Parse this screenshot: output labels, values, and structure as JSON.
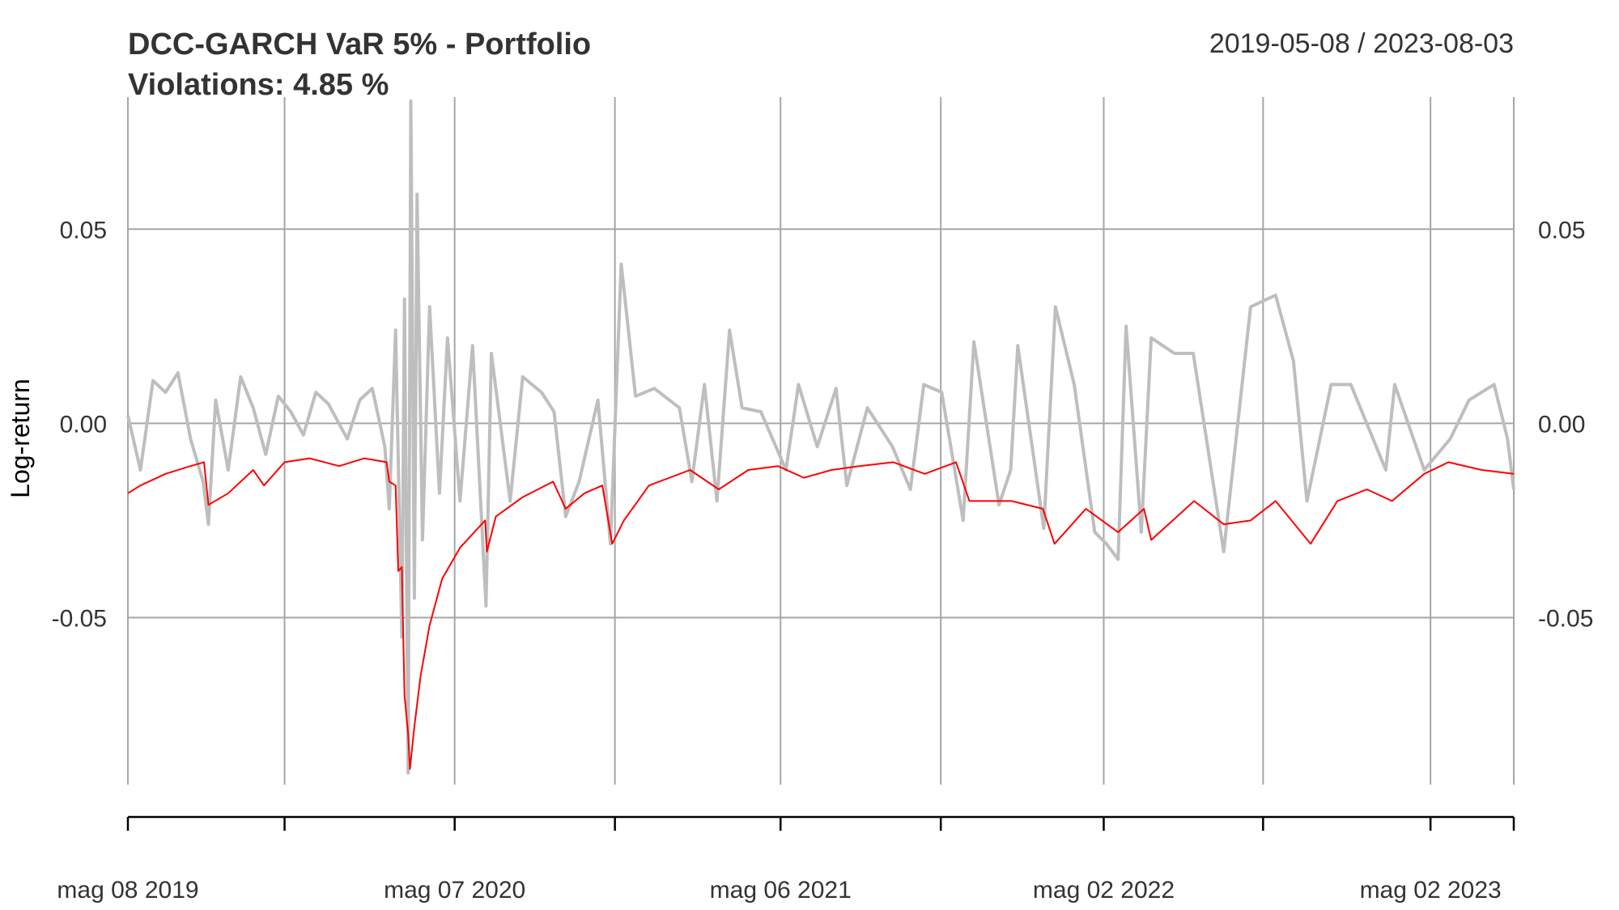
{
  "chart_data": {
    "type": "line",
    "title": "DCC-GARCH VaR 5% - Portfolio",
    "subtitle": "Violations: 4.85 %",
    "date_range": "2019-05-08 / 2023-08-03",
    "ylabel": "Log-return",
    "xlabel": "",
    "x_start": "2019-05-08",
    "x_end": "2023-08-03",
    "ylim": [
      -0.093,
      0.084
    ],
    "y_ticks": [
      {
        "value": 0.05,
        "label": "0.05"
      },
      {
        "value": 0.0,
        "label": "0.00"
      },
      {
        "value": -0.05,
        "label": "-0.05"
      }
    ],
    "x_grid_dates": [
      "2019-05-08",
      "2019-10-30",
      "2020-05-07",
      "2020-11-02",
      "2021-05-06",
      "2021-11-01",
      "2022-05-02",
      "2022-10-27",
      "2023-05-02",
      "2023-08-03"
    ],
    "x_tick_labels": [
      {
        "date": "2019-05-08",
        "label": "mag 08 2019"
      },
      {
        "date": "2020-05-07",
        "label": "mag 07 2020"
      },
      {
        "date": "2021-05-06",
        "label": "mag 06 2021"
      },
      {
        "date": "2022-05-02",
        "label": "mag 02 2022"
      },
      {
        "date": "2023-05-02",
        "label": "mag 02 2023"
      }
    ],
    "grid": true,
    "series": [
      {
        "name": "",
        "color": "#bebebe",
        "line_width": 4,
        "points": [
          [
            "2019-05-08",
            0.002
          ],
          [
            "2019-05-22",
            -0.012
          ],
          [
            "2019-06-05",
            0.011
          ],
          [
            "2019-06-19",
            0.008
          ],
          [
            "2019-07-03",
            0.013
          ],
          [
            "2019-07-17",
            -0.004
          ],
          [
            "2019-07-31",
            -0.015
          ],
          [
            "2019-08-06",
            -0.026
          ],
          [
            "2019-08-14",
            0.006
          ],
          [
            "2019-08-28",
            -0.012
          ],
          [
            "2019-09-11",
            0.012
          ],
          [
            "2019-09-25",
            0.004
          ],
          [
            "2019-10-09",
            -0.008
          ],
          [
            "2019-10-23",
            0.007
          ],
          [
            "2019-11-06",
            0.003
          ],
          [
            "2019-11-20",
            -0.003
          ],
          [
            "2019-12-04",
            0.008
          ],
          [
            "2019-12-18",
            0.005
          ],
          [
            "2020-01-08",
            -0.004
          ],
          [
            "2020-01-22",
            0.006
          ],
          [
            "2020-02-05",
            0.009
          ],
          [
            "2020-02-19",
            -0.006
          ],
          [
            "2020-02-24",
            -0.022
          ],
          [
            "2020-03-02",
            0.024
          ],
          [
            "2020-03-09",
            -0.055
          ],
          [
            "2020-03-12",
            0.032
          ],
          [
            "2020-03-16",
            -0.09
          ],
          [
            "2020-03-19",
            0.083
          ],
          [
            "2020-03-23",
            -0.045
          ],
          [
            "2020-03-26",
            0.059
          ],
          [
            "2020-04-01",
            -0.03
          ],
          [
            "2020-04-09",
            0.03
          ],
          [
            "2020-04-20",
            -0.018
          ],
          [
            "2020-04-29",
            0.022
          ],
          [
            "2020-05-13",
            -0.02
          ],
          [
            "2020-05-27",
            0.02
          ],
          [
            "2020-06-11",
            -0.047
          ],
          [
            "2020-06-17",
            0.018
          ],
          [
            "2020-07-08",
            -0.02
          ],
          [
            "2020-07-22",
            0.012
          ],
          [
            "2020-08-12",
            0.008
          ],
          [
            "2020-08-26",
            0.003
          ],
          [
            "2020-09-08",
            -0.024
          ],
          [
            "2020-09-23",
            -0.015
          ],
          [
            "2020-10-14",
            0.006
          ],
          [
            "2020-10-28",
            -0.031
          ],
          [
            "2020-11-09",
            0.041
          ],
          [
            "2020-11-25",
            0.007
          ],
          [
            "2020-12-16",
            0.009
          ],
          [
            "2021-01-13",
            0.004
          ],
          [
            "2021-01-27",
            -0.015
          ],
          [
            "2021-02-10",
            0.01
          ],
          [
            "2021-02-24",
            -0.02
          ],
          [
            "2021-03-10",
            0.024
          ],
          [
            "2021-03-24",
            0.004
          ],
          [
            "2021-04-14",
            0.003
          ],
          [
            "2021-05-12",
            -0.012
          ],
          [
            "2021-05-26",
            0.01
          ],
          [
            "2021-06-16",
            -0.006
          ],
          [
            "2021-07-07",
            0.009
          ],
          [
            "2021-07-19",
            -0.016
          ],
          [
            "2021-08-11",
            0.004
          ],
          [
            "2021-09-08",
            -0.006
          ],
          [
            "2021-09-28",
            -0.017
          ],
          [
            "2021-10-13",
            0.01
          ],
          [
            "2021-11-02",
            0.008
          ],
          [
            "2021-11-26",
            -0.025
          ],
          [
            "2021-12-08",
            0.021
          ],
          [
            "2022-01-05",
            -0.021
          ],
          [
            "2022-01-18",
            -0.012
          ],
          [
            "2022-01-26",
            0.02
          ],
          [
            "2022-02-24",
            -0.027
          ],
          [
            "2022-03-09",
            0.03
          ],
          [
            "2022-03-30",
            0.01
          ],
          [
            "2022-04-22",
            -0.028
          ],
          [
            "2022-05-05",
            -0.031
          ],
          [
            "2022-05-18",
            -0.035
          ],
          [
            "2022-05-27",
            0.025
          ],
          [
            "2022-06-13",
            -0.028
          ],
          [
            "2022-06-24",
            0.022
          ],
          [
            "2022-07-20",
            0.018
          ],
          [
            "2022-08-10",
            0.018
          ],
          [
            "2022-09-13",
            -0.033
          ],
          [
            "2022-10-13",
            0.03
          ],
          [
            "2022-11-10",
            0.033
          ],
          [
            "2022-11-30",
            0.016
          ],
          [
            "2022-12-15",
            -0.02
          ],
          [
            "2023-01-11",
            0.01
          ],
          [
            "2023-02-02",
            0.01
          ],
          [
            "2023-03-13",
            -0.012
          ],
          [
            "2023-03-23",
            0.01
          ],
          [
            "2023-04-25",
            -0.012
          ],
          [
            "2023-05-24",
            -0.004
          ],
          [
            "2023-06-14",
            0.006
          ],
          [
            "2023-07-12",
            0.01
          ],
          [
            "2023-07-27",
            -0.004
          ],
          [
            "2023-08-03",
            -0.017
          ]
        ]
      },
      {
        "name": "",
        "color": "#ff0000",
        "line_width": 2,
        "points": [
          [
            "2019-05-08",
            -0.018
          ],
          [
            "2019-05-22",
            -0.016
          ],
          [
            "2019-06-19",
            -0.013
          ],
          [
            "2019-07-17",
            -0.011
          ],
          [
            "2019-08-01",
            -0.01
          ],
          [
            "2019-08-06",
            -0.021
          ],
          [
            "2019-08-28",
            -0.018
          ],
          [
            "2019-09-25",
            -0.012
          ],
          [
            "2019-10-07",
            -0.016
          ],
          [
            "2019-10-30",
            -0.01
          ],
          [
            "2019-11-27",
            -0.009
          ],
          [
            "2019-12-30",
            -0.011
          ],
          [
            "2020-01-27",
            -0.009
          ],
          [
            "2020-02-21",
            -0.01
          ],
          [
            "2020-02-24",
            -0.015
          ],
          [
            "2020-03-02",
            -0.016
          ],
          [
            "2020-03-05",
            -0.038
          ],
          [
            "2020-03-09",
            -0.037
          ],
          [
            "2020-03-12",
            -0.07
          ],
          [
            "2020-03-16",
            -0.08
          ],
          [
            "2020-03-18",
            -0.089
          ],
          [
            "2020-03-23",
            -0.078
          ],
          [
            "2020-03-30",
            -0.065
          ],
          [
            "2020-04-09",
            -0.052
          ],
          [
            "2020-04-23",
            -0.04
          ],
          [
            "2020-05-13",
            -0.032
          ],
          [
            "2020-06-10",
            -0.025
          ],
          [
            "2020-06-12",
            -0.033
          ],
          [
            "2020-06-22",
            -0.024
          ],
          [
            "2020-07-22",
            -0.019
          ],
          [
            "2020-08-25",
            -0.015
          ],
          [
            "2020-09-08",
            -0.022
          ],
          [
            "2020-09-29",
            -0.018
          ],
          [
            "2020-10-19",
            -0.016
          ],
          [
            "2020-10-30",
            -0.031
          ],
          [
            "2020-11-12",
            -0.025
          ],
          [
            "2020-12-10",
            -0.016
          ],
          [
            "2021-01-25",
            -0.012
          ],
          [
            "2021-02-26",
            -0.017
          ],
          [
            "2021-03-31",
            -0.012
          ],
          [
            "2021-05-03",
            -0.011
          ],
          [
            "2021-06-01",
            -0.014
          ],
          [
            "2021-07-02",
            -0.012
          ],
          [
            "2021-08-02",
            -0.011
          ],
          [
            "2021-09-09",
            -0.01
          ],
          [
            "2021-10-14",
            -0.013
          ],
          [
            "2021-11-18",
            -0.01
          ],
          [
            "2021-12-03",
            -0.02
          ],
          [
            "2022-01-19",
            -0.02
          ],
          [
            "2022-02-23",
            -0.022
          ],
          [
            "2022-03-08",
            -0.031
          ],
          [
            "2022-04-12",
            -0.022
          ],
          [
            "2022-05-18",
            -0.028
          ],
          [
            "2022-06-16",
            -0.022
          ],
          [
            "2022-06-24",
            -0.03
          ],
          [
            "2022-08-11",
            -0.02
          ],
          [
            "2022-09-13",
            -0.026
          ],
          [
            "2022-10-13",
            -0.025
          ],
          [
            "2022-11-10",
            -0.02
          ],
          [
            "2022-12-19",
            -0.031
          ],
          [
            "2023-01-18",
            -0.02
          ],
          [
            "2023-02-20",
            -0.017
          ],
          [
            "2023-03-20",
            -0.02
          ],
          [
            "2023-04-25",
            -0.013
          ],
          [
            "2023-05-22",
            -0.01
          ],
          [
            "2023-06-28",
            -0.012
          ],
          [
            "2023-08-03",
            -0.013
          ]
        ]
      }
    ]
  }
}
